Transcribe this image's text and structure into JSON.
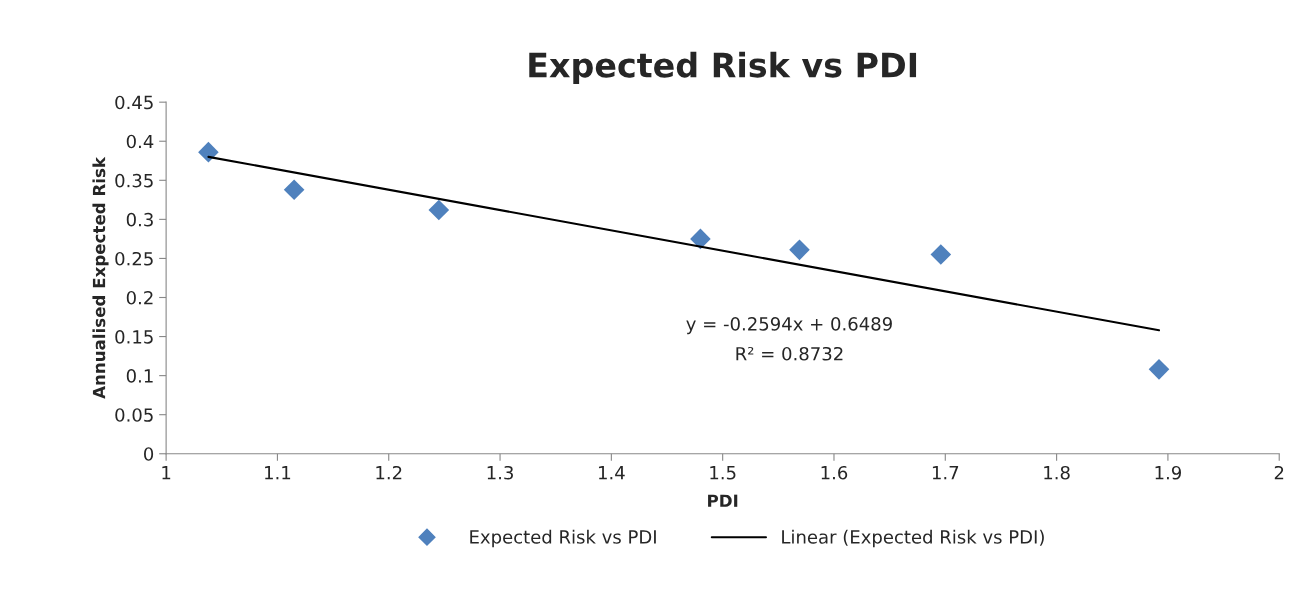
{
  "chart_data": {
    "type": "scatter",
    "title": "Expected Risk vs PDI",
    "xlabel": "PDI",
    "ylabel": "Annualised Expected Risk",
    "series": [
      {
        "name": "Expected Risk vs PDI",
        "color": "#4f81bd",
        "marker": "diamond",
        "x": [
          1.038,
          1.115,
          1.245,
          1.48,
          1.569,
          1.696,
          1.892
        ],
        "values": [
          0.386,
          0.338,
          0.312,
          0.275,
          0.261,
          0.255,
          0.108
        ]
      },
      {
        "name": "Linear (Expected Risk vs PDI)",
        "type": "line",
        "color": "#000000",
        "marker": "none",
        "line_style": "solid",
        "x": [
          1.038,
          1.892
        ],
        "values": [
          0.38,
          0.158
        ]
      }
    ],
    "annotations": [
      "y = -0.2594x + 0.6489",
      "R² = 0.8732"
    ],
    "xlim": [
      1,
      2
    ],
    "xticks": [
      1,
      1.1,
      1.2,
      1.3,
      1.4,
      1.5,
      1.6,
      1.7,
      1.8,
      1.9,
      2
    ],
    "ylim": [
      0,
      0.45
    ],
    "yticks": [
      0,
      0.05,
      0.1,
      0.15,
      0.2,
      0.25,
      0.3,
      0.35,
      0.4,
      0.45
    ],
    "grid": false,
    "legend": "bottom"
  }
}
